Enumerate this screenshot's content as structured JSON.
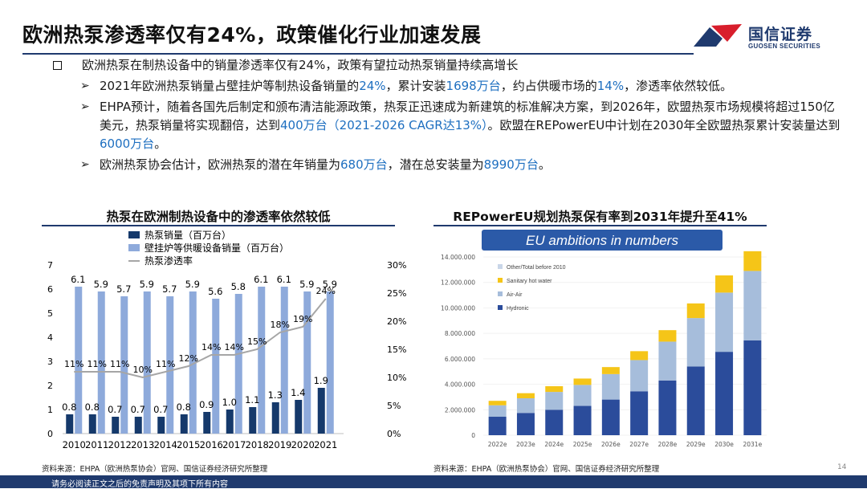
{
  "header": {
    "title": "欧洲热泵渗透率仅有24%，政策催化行业加速发展",
    "logo_cn": "国信证券",
    "logo_en": "GUOSEN SECURITIES"
  },
  "bullets": {
    "main": "欧洲热泵在制热设备中的销量渗透率仅有24%，政策有望拉动热泵销量持续高增长",
    "sub1": [
      {
        "t": "2021年欧洲热泵销量占壁挂炉等制热设备销量的"
      },
      {
        "t": "24%",
        "h": true
      },
      {
        "t": "，累计安装"
      },
      {
        "t": "1698万台",
        "h": true
      },
      {
        "t": "，约占供暖市场的"
      },
      {
        "t": "14%",
        "h": true
      },
      {
        "t": "，渗透率依然较低。"
      }
    ],
    "sub2": [
      {
        "t": "EHPA预计，随着各国先后制定和颁布清洁能源政策，热泵正迅速成为新建筑的标准解决方案，到2026年，欧盟热泵市场规模将超过150亿美元，热泵销量将实现翻倍，达到"
      },
      {
        "t": "400万台（2021-2026 CAGR达13%）",
        "h": true
      },
      {
        "t": "。欧盟在REPowerEU中计划在2030年全欧盟热泵累计安装量达到"
      },
      {
        "t": "6000万台",
        "h": true
      },
      {
        "t": "。"
      }
    ],
    "sub3": [
      {
        "t": "欧洲热泵协会估计，欧洲热泵的潜在年销量为"
      },
      {
        "t": "680万台",
        "h": true
      },
      {
        "t": "，潜在总安装量为"
      },
      {
        "t": "8990万台",
        "h": true
      },
      {
        "t": "。"
      }
    ]
  },
  "left_panel": {
    "title": "热泵在欧洲制热设备中的渗透率依然较低",
    "source": "资料来源：EHPA（欧洲热泵协会）官网、国信证券经济研究所整理"
  },
  "right_panel": {
    "title": "REPowerEU规划热泵保有率到2031年提升至41%",
    "banner": "EU ambitions in numbers",
    "source": "资料来源：EHPA（欧洲热泵协会）官网、国信证券经济研究所整理"
  },
  "page_number": "14",
  "footer_text": "请务必阅读正文之后的免责声明及其项下所有内容",
  "colors": {
    "navy": "#1f3a6e",
    "dark_bar": "#15396b",
    "light_bar": "#8eaadb",
    "line": "#a6a6a6",
    "highlight": "#1e6fc0",
    "gold": "#f5c518",
    "eu_banner": "#2b5aa8"
  },
  "chart_data": [
    {
      "type": "bar",
      "categories": [
        "2010",
        "2011",
        "2012",
        "2013",
        "2014",
        "2015",
        "2016",
        "2017",
        "2018",
        "2019",
        "2020",
        "2021"
      ],
      "series": [
        {
          "name": "热泵销量（百万台）",
          "values": [
            0.8,
            0.8,
            0.7,
            0.7,
            0.7,
            0.8,
            0.9,
            1.0,
            1.1,
            1.3,
            1.4,
            1.9
          ],
          "labels": [
            "0.8",
            "0.8",
            "0.7",
            "0.7",
            "0.7",
            "0.8",
            "0.9",
            "1.0",
            "1.1",
            "1.3",
            "1.4",
            "1.9"
          ],
          "axis": "left"
        },
        {
          "name": "壁挂炉等供暖设备销量（百万台）",
          "values": [
            6.1,
            5.9,
            5.7,
            5.9,
            5.7,
            5.9,
            5.6,
            5.8,
            6.1,
            6.1,
            5.9,
            5.9
          ],
          "labels": [
            "6.1",
            "5.9",
            "5.7",
            "5.9",
            "5.7",
            "5.9",
            "5.6",
            "5.8",
            "6.1",
            "6.1",
            "5.9",
            "5.9"
          ],
          "axis": "left"
        },
        {
          "name": "热泵渗透率",
          "values": [
            11,
            11,
            11,
            10,
            11,
            12,
            14,
            14,
            15,
            18,
            19,
            24
          ],
          "labels": [
            "11%",
            "11%",
            "11%",
            "10%",
            "11%",
            "12%",
            "14%",
            "14%",
            "15%",
            "18%",
            "19%",
            "24%"
          ],
          "axis": "right",
          "type": "line"
        }
      ],
      "ylim": [
        0,
        7
      ],
      "yticks": [
        "0",
        "1",
        "2",
        "3",
        "4",
        "5",
        "6",
        "7"
      ],
      "y2lim": [
        0,
        30
      ],
      "y2ticks": [
        "0%",
        "5%",
        "10%",
        "15%",
        "20%",
        "25%",
        "30%"
      ],
      "legend": "top-left"
    },
    {
      "type": "bar",
      "stacked": true,
      "categories": [
        "2022e",
        "2023e",
        "2024e",
        "2025e",
        "2026e",
        "2027e",
        "2028e",
        "2029e",
        "2030e",
        "2031e"
      ],
      "series": [
        {
          "name": "Other/Total before 2010",
          "color": "#c9d6e8",
          "values": [
            0,
            0,
            0,
            0,
            0,
            0,
            0,
            0,
            0,
            0
          ]
        },
        {
          "name": "Sanitary hot water",
          "color": "#f5c518",
          "values": [
            350000,
            400000,
            450000,
            500000,
            550000,
            700000,
            900000,
            1150000,
            1350000,
            1550000
          ]
        },
        {
          "name": "Air-Air",
          "color": "#a6bddb",
          "values": [
            900000,
            1150000,
            1400000,
            1650000,
            2000000,
            2450000,
            3050000,
            3800000,
            4650000,
            5450000
          ]
        },
        {
          "name": "Hydronic",
          "color": "#2b4c9b",
          "values": [
            1450000,
            1750000,
            2000000,
            2300000,
            2800000,
            3450000,
            4300000,
            5400000,
            6550000,
            7450000
          ]
        }
      ],
      "ylim": [
        0,
        14000000
      ],
      "yticks": [
        "0",
        "2.000.000",
        "4.000.000",
        "6.000.000",
        "8.000.000",
        "10.000.000",
        "12.000.000",
        "14.000.000"
      ],
      "legend": "top-left"
    }
  ]
}
